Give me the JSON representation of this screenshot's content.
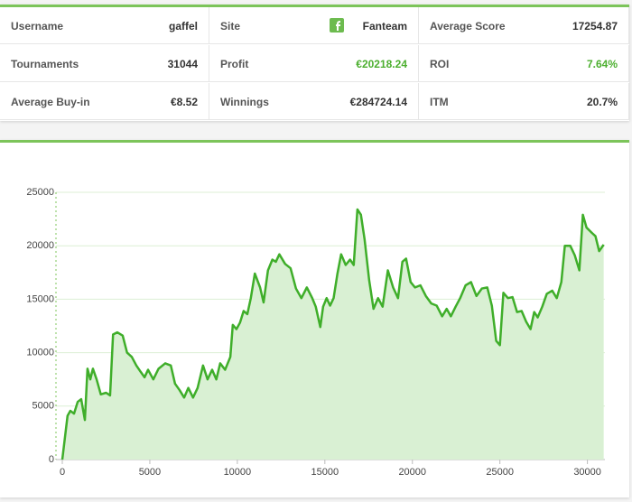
{
  "stats": {
    "rows": [
      [
        {
          "label": "Username",
          "value": "gaffel"
        },
        {
          "label": "Site",
          "value": "Fanteam"
        },
        {
          "label": "Average Score",
          "value": "17254.87"
        }
      ],
      [
        {
          "label": "Tournaments",
          "value": "31044"
        },
        {
          "label": "Profit",
          "value": "€20218.24",
          "color": "#4caf2f"
        },
        {
          "label": "ROI",
          "value": "7.64%",
          "color": "#4caf2f"
        }
      ],
      [
        {
          "label": "Average Buy-in",
          "value": "€8.52"
        },
        {
          "label": "Winnings",
          "value": "€284724.14"
        },
        {
          "label": "ITM",
          "value": "20.7%"
        }
      ]
    ]
  },
  "chart_data": {
    "type": "line",
    "color": "#3fae2a",
    "fill": "#d9f0d3",
    "grid": true,
    "x": [
      0,
      300,
      460,
      670,
      880,
      1080,
      1290,
      1440,
      1600,
      1750,
      1960,
      2200,
      2500,
      2730,
      2900,
      3140,
      3450,
      3700,
      3970,
      4230,
      4480,
      4700,
      4900,
      5200,
      5500,
      5880,
      6200,
      6440,
      6700,
      6960,
      7200,
      7470,
      7730,
      8040,
      8300,
      8560,
      8800,
      9020,
      9300,
      9600,
      9740,
      9950,
      10150,
      10360,
      10570,
      10770,
      11000,
      11300,
      11500,
      11750,
      12000,
      12200,
      12400,
      12730,
      13040,
      13350,
      13660,
      13970,
      14280,
      14480,
      14740,
      14900,
      15100,
      15300,
      15500,
      15720,
      15930,
      16190,
      16440,
      16650,
      16860,
      17060,
      17270,
      17530,
      17780,
      18040,
      18300,
      18600,
      18900,
      19180,
      19430,
      19640,
      19900,
      20150,
      20460,
      20770,
      21080,
      21390,
      21700,
      21960,
      22200,
      22470,
      22730,
      23040,
      23350,
      23660,
      23970,
      24280,
      24540,
      24790,
      25000,
      25200,
      25460,
      25720,
      25980,
      26240,
      26500,
      26750,
      26960,
      27160,
      27420,
      27680,
      27990,
      28250,
      28510,
      28710,
      29020,
      29280,
      29540,
      29740,
      29950,
      30260,
      30460,
      30670,
      30930
    ],
    "values": [
      0,
      4100,
      4560,
      4300,
      5400,
      5650,
      3700,
      8500,
      7500,
      8500,
      7500,
      6100,
      6250,
      6000,
      11700,
      11900,
      11600,
      10000,
      9600,
      8800,
      8200,
      7700,
      8400,
      7500,
      8500,
      9000,
      8800,
      7100,
      6500,
      5800,
      6700,
      5800,
      6700,
      8800,
      7500,
      8400,
      7500,
      9000,
      8400,
      9600,
      12600,
      12200,
      12800,
      13900,
      13600,
      15100,
      17400,
      16100,
      14700,
      17700,
      18700,
      18500,
      19200,
      18300,
      17900,
      16000,
      15100,
      16100,
      15100,
      14300,
      12400,
      14300,
      15100,
      14400,
      15100,
      17400,
      19200,
      18200,
      18700,
      18200,
      23400,
      22900,
      20600,
      16800,
      14100,
      15100,
      14300,
      17700,
      16100,
      15100,
      18500,
      18800,
      16600,
      16100,
      16300,
      15300,
      14600,
      14400,
      13400,
      14100,
      13400,
      14300,
      15100,
      16300,
      16600,
      15300,
      16000,
      16100,
      14400,
      11100,
      10700,
      15600,
      15100,
      15200,
      13800,
      13900,
      12900,
      12200,
      13800,
      13300,
      14300,
      15500,
      15800,
      15100,
      16600,
      20000,
      20000,
      19100,
      17700,
      22900,
      21700,
      21200,
      20900,
      19500,
      20100
    ],
    "xlim": [
      0,
      31000
    ],
    "xticks": [
      0,
      5000,
      10000,
      15000,
      20000,
      25000,
      30000
    ],
    "ylim": [
      0,
      25000
    ],
    "yticks": [
      0,
      5000,
      10000,
      15000,
      20000,
      25000
    ]
  }
}
